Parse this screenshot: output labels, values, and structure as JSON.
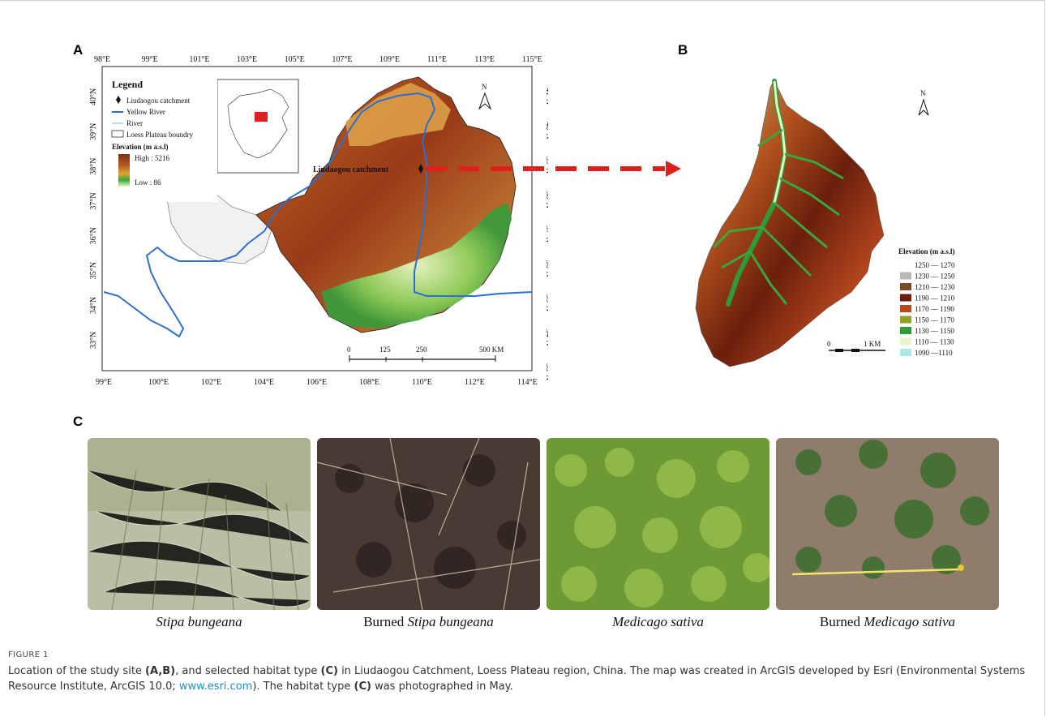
{
  "panels": {
    "a": "A",
    "b": "B",
    "c": "C"
  },
  "mapA": {
    "top_lon": [
      "98°E",
      "99°E",
      "101°E",
      "103°E",
      "105°E",
      "107°E",
      "109°E",
      "111°E",
      "113°E",
      "115°E"
    ],
    "bottom_lon": [
      "99°E",
      "100°E",
      "102°E",
      "104°E",
      "106°E",
      "108°E",
      "110°E",
      "112°E",
      "114°E"
    ],
    "left_lat": [
      "40°N",
      "39°N",
      "38°N",
      "37°N",
      "36°N",
      "35°N",
      "34°N",
      "33°N"
    ],
    "right_lat": [
      "41°N",
      "40°N",
      "39°N",
      "38°N",
      "37°N",
      "36°N",
      "35°N",
      "34°N",
      "33°N"
    ],
    "north": "N",
    "legend": {
      "title": "Legend",
      "items": [
        "Liudaogou catchment",
        "Yellow River",
        "River",
        "Loess Plateau boundry"
      ],
      "elev_title": "Elevation (m a.s.l)",
      "high": "High : 5216",
      "low": "Low : 86"
    },
    "catchment_label": "Liudaogou catchment",
    "scale": [
      "0",
      "125",
      "250",
      "500 KM"
    ]
  },
  "mapB": {
    "north": "N",
    "legend_title": "Elevation (m a.s.l)",
    "classes": [
      {
        "label": "1250 — 1270",
        "color": "#ffffff"
      },
      {
        "label": "1230 — 1250",
        "color": "#b9b9b9"
      },
      {
        "label": "1210 — 1230",
        "color": "#7a4a2a"
      },
      {
        "label": "1190 — 1210",
        "color": "#6b1f0c"
      },
      {
        "label": "1170 — 1190",
        "color": "#b8481e"
      },
      {
        "label": "1150 — 1170",
        "color": "#93a02a"
      },
      {
        "label": "1130 — 1150",
        "color": "#2e9b3a"
      },
      {
        "label": "1110 — 1130",
        "color": "#e8f5c8"
      },
      {
        "label": "1090 —1110",
        "color": "#a9e6e6"
      }
    ],
    "scale": [
      "0",
      "1 KM"
    ]
  },
  "photos": [
    {
      "pre": "",
      "italic": "Stipa bungeana"
    },
    {
      "pre": "Burned ",
      "italic": "Stipa bungeana"
    },
    {
      "pre": "",
      "italic": "Medicago sativa"
    },
    {
      "pre": "Burned ",
      "italic": "Medicago sativa"
    }
  ],
  "figure": {
    "label": "FIGURE 1",
    "text1": "Location of the study site ",
    "ref1": "(A,B)",
    "text2": ", and selected habitat type ",
    "ref2": "(C)",
    "text3": " in Liudaogou Catchment, Loess Plateau region, China. The map was created in ArcGIS developed by Esri (Environmental Systems Resource Institute, ArcGIS 10.0; ",
    "link": "www.esri.com",
    "text4": "). The habitat type ",
    "ref3": "(C)",
    "text5": " was photographed in May."
  },
  "colors": {
    "arrow": "#e0201b",
    "link": "#1f8fc0"
  }
}
